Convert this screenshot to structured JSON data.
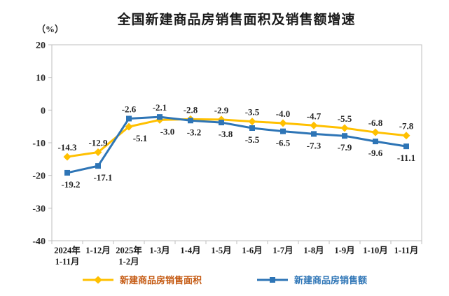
{
  "page": {
    "title": "全国新建商品房销售面积及销售额增速",
    "unit_label": "（%）"
  },
  "chart_data": {
    "type": "line",
    "title": "全国新建商品房销售面积及销售额增速",
    "ylabel": "（%）",
    "xlabel": "",
    "ylim": [
      -40,
      20
    ],
    "yticks": [
      20,
      10,
      0,
      -10,
      -20,
      -30,
      -40
    ],
    "grid": false,
    "legend_position": "bottom",
    "axis_color": "#BFBFBF",
    "label_color": "#262626",
    "categories": [
      "2024年|1-11月",
      "1-12月",
      "2025年|1-2月",
      "1-3月",
      "1-4月",
      "1-5月",
      "1-6月",
      "1-7月",
      "1-8月",
      "1-9月",
      "1-10月",
      "1-11月"
    ],
    "series": [
      {
        "name": "新建商品房销售面积",
        "color": "#FFC000",
        "label_color": "#C45911",
        "marker": "diamond",
        "values": [
          -14.3,
          -12.9,
          -5.1,
          -3.0,
          -2.8,
          -2.9,
          -3.5,
          -4.0,
          -4.7,
          -5.5,
          -6.8,
          -7.8
        ],
        "label_dx": {
          "2": 16,
          "3": 11
        }
      },
      {
        "name": "新建商品房销售额",
        "color": "#2E75B6",
        "label_color": "#2E75B6",
        "marker": "square",
        "values": [
          -19.2,
          -17.1,
          -2.6,
          -2.1,
          -3.2,
          -3.8,
          -5.5,
          -6.5,
          -7.3,
          -7.9,
          -9.6,
          -11.1
        ],
        "label_dx": {
          "0": 5,
          "1": 7,
          "4": 5,
          "5": 6
        }
      }
    ]
  }
}
